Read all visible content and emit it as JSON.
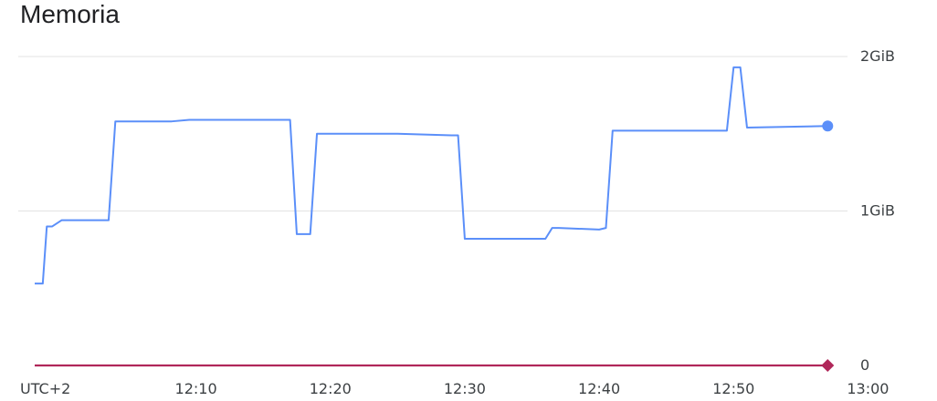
{
  "chart_data": {
    "type": "line",
    "title": "Memoria",
    "xlabel": "",
    "ylabel": "",
    "x_tick_labels": [
      "UTC+2",
      "12:10",
      "12:20",
      "12:30",
      "12:40",
      "12:50",
      "13:00"
    ],
    "x_ticks_minutes": [
      12.0,
      22.0,
      32.0,
      42.0,
      52.0,
      62.0
    ],
    "xlim_minutes": [
      0.0,
      60.0
    ],
    "y_tick_labels": [
      "0",
      "1GiB",
      "2GiB"
    ],
    "y_ticks_gib": [
      0,
      1,
      2
    ],
    "ylim_gib": [
      0,
      2
    ],
    "grid": true,
    "series": [
      {
        "name": "",
        "color": "#5b8ff9",
        "x_minutes": [
          0.0,
          0.6,
          0.9,
          1.3,
          2.0,
          5.5,
          6.0,
          10.2,
          11.5,
          12.0,
          19.0,
          19.5,
          20.5,
          21.0,
          21.5,
          22.0,
          27.0,
          31.0,
          31.5,
          32.0,
          38.0,
          38.5,
          39.0,
          42.0,
          42.5,
          43.0,
          51.5,
          52.0,
          52.5,
          53.0,
          59.0
        ],
        "y_gib": [
          0.53,
          0.53,
          0.9,
          0.9,
          0.94,
          0.94,
          1.58,
          1.58,
          1.59,
          1.59,
          1.59,
          0.85,
          0.85,
          1.5,
          1.5,
          1.5,
          1.5,
          1.49,
          1.49,
          0.82,
          0.82,
          0.89,
          0.89,
          0.88,
          0.89,
          1.52,
          1.52,
          1.93,
          1.93,
          1.54,
          1.55
        ],
        "last_value_gib": 1.55
      },
      {
        "name": "",
        "color": "#b0275a",
        "x_minutes": [
          0.0,
          59.0
        ],
        "y_gib": [
          0,
          0
        ],
        "last_value_gib": 0
      }
    ]
  }
}
